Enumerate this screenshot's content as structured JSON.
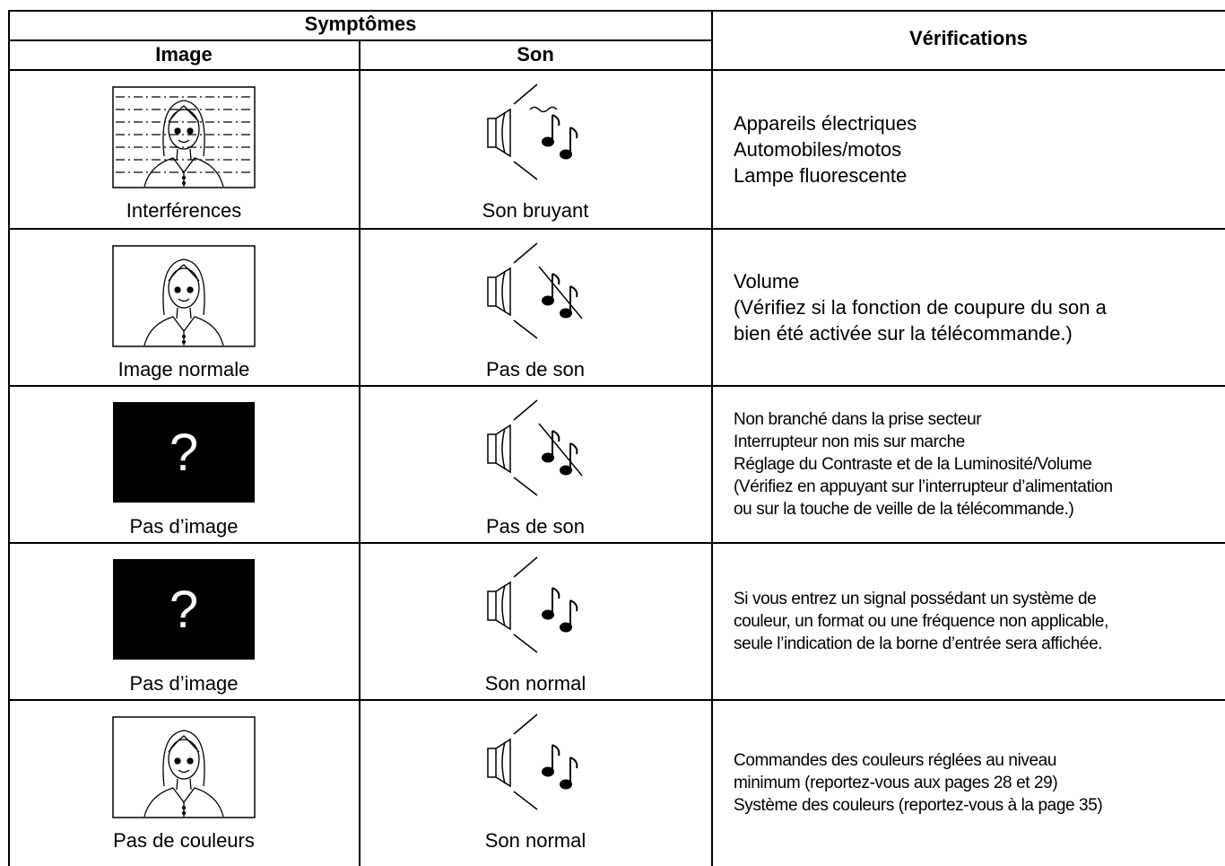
{
  "header": {
    "symptoms": "Symptômes",
    "image": "Image",
    "sound": "Son",
    "checks": "Vérifications"
  },
  "rows": [
    {
      "image_label": "Interférences",
      "sound_label": "Son bruyant",
      "checks": [
        "Appareils électriques",
        "Automobiles/motos",
        "Lampe fluorescente"
      ]
    },
    {
      "image_label": "Image normale",
      "sound_label": "Pas de son",
      "checks": [
        "Volume",
        "(Vérifiez si la fonction de coupure du son a",
        "bien été activée sur la télécommande.)"
      ]
    },
    {
      "image_text": "?",
      "image_label": "Pas d’image",
      "sound_label": "Pas de son",
      "checks": [
        "Non branché dans la prise secteur",
        "Interrupteur non mis sur marche",
        "Réglage du Contraste et de la Luminosité/Volume",
        "(Vérifiez en appuyant sur l’interrupteur d’alimentation",
        "ou sur la touche de veille de la télécommande.)"
      ]
    },
    {
      "image_text": "?",
      "image_label": "Pas d’image",
      "sound_label": "Son normal",
      "checks": [
        "Si vous entrez un signal possédant un système de",
        "couleur, un format ou une fréquence non applicable,",
        "seule l’indication de la borne d’entrée sera affichée."
      ]
    },
    {
      "image_label": "Pas de couleurs",
      "sound_label": "Son normal",
      "checks": [
        "Commandes des couleurs réglées au niveau",
        "minimum (reportez-vous aux pages 28 et 29)",
        "Système des couleurs (reportez-vous à la page 35)"
      ]
    }
  ]
}
